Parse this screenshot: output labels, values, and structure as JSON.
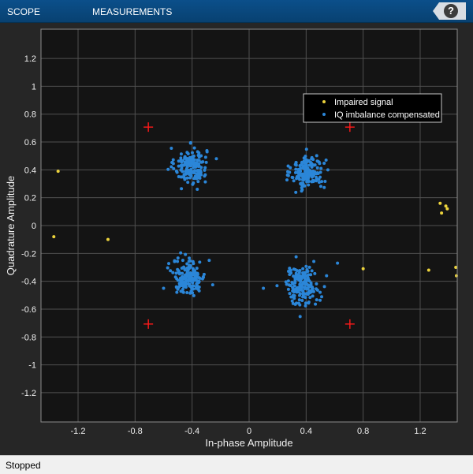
{
  "toolstrip": {
    "tabs": [
      {
        "label": "SCOPE"
      },
      {
        "label": "MEASUREMENTS"
      }
    ],
    "help_label": "?"
  },
  "status": {
    "text": "Stopped"
  },
  "colors": {
    "background": "#141414",
    "grid": "#505050",
    "axis_text": "#f0f0f0",
    "impaired": "#ecd33c",
    "compensated": "#2b86d8",
    "reference": "#ff1a1a"
  },
  "chart_data": {
    "type": "scatter",
    "xlabel": "In-phase Amplitude",
    "ylabel": "Quadrature Amplitude",
    "xlim": [
      -1.46,
      1.46
    ],
    "ylim": [
      -1.41,
      1.41
    ],
    "xticks": [
      -1.2,
      -0.8,
      -0.4,
      0,
      0.4,
      0.8,
      1.2
    ],
    "xtick_labels": [
      "-1.2",
      "-0.8",
      "-0.4",
      "0",
      "0.4",
      "0.8",
      "1.2"
    ],
    "yticks": [
      1.2,
      1,
      0.8,
      0.6,
      0.4,
      0.2,
      0,
      -0.2,
      -0.4,
      -0.6,
      -0.8,
      -1,
      -1.2
    ],
    "ytick_labels": [
      "1.2",
      "1",
      "0.8",
      "0.6",
      "0.4",
      "0.2",
      "0",
      "-0.2",
      "-0.4",
      "-0.6",
      "-0.8",
      "-1",
      "-1.2"
    ],
    "grid": true,
    "legend_position": "top-right",
    "legend": [
      "Impaired signal",
      "IQ imbalance compensated"
    ],
    "series": [
      {
        "name": "Impaired signal",
        "points": [
          [
            -1.34,
            0.39
          ],
          [
            -1.37,
            -0.08
          ],
          [
            -0.99,
            -0.1
          ],
          [
            0.8,
            -0.31
          ],
          [
            1.26,
            -0.32
          ],
          [
            1.45,
            -0.3
          ],
          [
            1.46,
            -0.36
          ],
          [
            1.34,
            0.16
          ],
          [
            1.35,
            0.09
          ],
          [
            1.38,
            0.14
          ],
          [
            1.39,
            0.12
          ]
        ]
      },
      {
        "name": "IQ imbalance compensated",
        "clusters": [
          {
            "center": [
              -0.41,
              0.43
            ],
            "spread": [
              0.056,
              0.064
            ],
            "count": 170
          },
          {
            "center": [
              0.41,
              0.38
            ],
            "spread": [
              0.056,
              0.062
            ],
            "count": 170
          },
          {
            "center": [
              -0.42,
              -0.37
            ],
            "spread": [
              0.056,
              0.062
            ],
            "count": 170
          },
          {
            "center": [
              0.37,
              -0.43
            ],
            "spread": [
              0.06,
              0.068
            ],
            "count": 170
          }
        ],
        "extra_points": [
          [
            -0.28,
            -0.25
          ],
          [
            0.62,
            -0.27
          ],
          [
            0.1,
            -0.45
          ],
          [
            0.54,
            0.47
          ],
          [
            -0.6,
            -0.45
          ]
        ]
      },
      {
        "name": "Reference constellation",
        "marker": "+",
        "points": [
          [
            -0.707,
            0.707
          ],
          [
            0.707,
            0.707
          ],
          [
            -0.707,
            -0.707
          ],
          [
            0.707,
            -0.707
          ]
        ]
      }
    ]
  }
}
